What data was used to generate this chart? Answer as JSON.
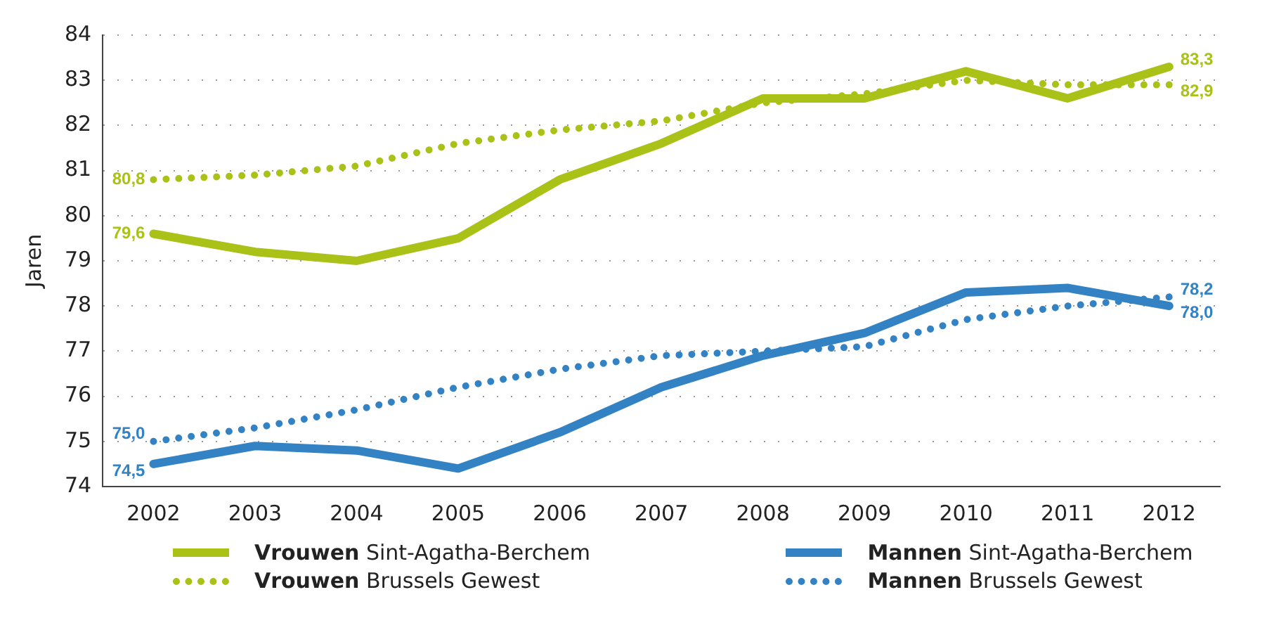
{
  "chart_data": {
    "type": "line",
    "ylabel": "Jaren",
    "categories": [
      "2002",
      "2003",
      "2004",
      "2005",
      "2006",
      "2007",
      "2008",
      "2009",
      "2010",
      "2011",
      "2012"
    ],
    "series": [
      {
        "name": "Vrouwen Sint-Agatha-Berchem",
        "color": "#aac118",
        "line_style": "solid",
        "values": [
          79.6,
          79.2,
          79.0,
          79.5,
          80.8,
          81.6,
          82.6,
          82.6,
          83.2,
          82.6,
          83.3
        ],
        "value_labels": [
          "79,6",
          null,
          null,
          null,
          null,
          null,
          null,
          null,
          null,
          null,
          "83,3"
        ]
      },
      {
        "name": "Vrouwen Brussels Gewest",
        "color": "#aac118",
        "line_style": "dotted",
        "values": [
          80.8,
          80.9,
          81.1,
          81.6,
          81.9,
          82.1,
          82.5,
          82.7,
          83.0,
          82.9,
          82.9
        ],
        "value_labels": [
          "80,8",
          null,
          null,
          null,
          null,
          null,
          null,
          null,
          null,
          null,
          "82,9"
        ]
      },
      {
        "name": "Mannen Sint-Agatha-Berchem",
        "color": "#3383c4",
        "line_style": "solid",
        "values": [
          74.5,
          74.9,
          74.8,
          74.4,
          75.2,
          76.2,
          76.9,
          77.4,
          78.3,
          78.4,
          78.0
        ],
        "value_labels": [
          "74,5",
          null,
          null,
          null,
          null,
          null,
          null,
          null,
          null,
          null,
          "78,0"
        ]
      },
      {
        "name": "Mannen Brussels Gewest",
        "color": "#3383c4",
        "line_style": "dotted",
        "values": [
          75.0,
          75.3,
          75.7,
          76.2,
          76.6,
          76.9,
          77.0,
          77.1,
          77.7,
          78.0,
          78.2
        ],
        "value_labels": [
          "75,0",
          null,
          null,
          null,
          null,
          null,
          null,
          null,
          null,
          null,
          "78,2"
        ]
      }
    ],
    "ylim": [
      74,
      84
    ],
    "yticks": [
      74,
      75,
      76,
      77,
      78,
      79,
      80,
      81,
      82,
      83,
      84
    ],
    "grid": "y",
    "legend": "bottom",
    "marker": "none"
  }
}
